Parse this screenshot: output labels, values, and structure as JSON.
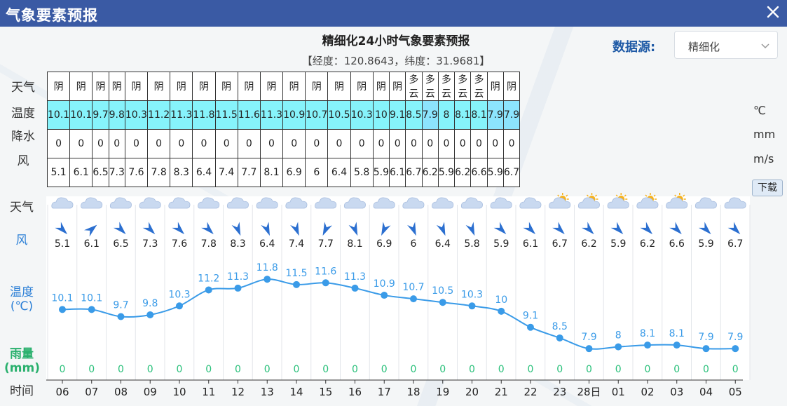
{
  "window": {
    "title": "气象要素预报",
    "close_icon": "close-icon"
  },
  "header": {
    "title": "精细化24小时气象要素预报",
    "coords": "【经度：120.8643，纬度：31.9681】",
    "source_label": "数据源:",
    "source_value": "精细化"
  },
  "table": {
    "row_labels": [
      "天气",
      "温度",
      "降水",
      "风"
    ],
    "units": [
      "℃",
      "mm",
      "m/s"
    ],
    "weather": [
      "阴",
      "阴",
      "阴",
      "阴",
      "阴",
      "阴",
      "阴",
      "阴",
      "阴",
      "阴",
      "阴",
      "阴",
      "阴",
      "阴",
      "阴",
      "阴",
      "阴",
      "多云",
      "多云",
      "多云",
      "多云",
      "多云",
      "阴",
      "阴"
    ],
    "temperature": [
      "10.1",
      "10.1",
      "9.7",
      "9.8",
      "10.3",
      "11.2",
      "11.3",
      "11.8",
      "11.5",
      "11.6",
      "11.3",
      "10.9",
      "10.7",
      "10.5",
      "10.3",
      "10",
      "9.1",
      "8.5",
      "7.9",
      "8",
      "8.1",
      "8.1",
      "7.9",
      "7.9"
    ],
    "precipitation": [
      "0",
      "0",
      "0",
      "0",
      "0",
      "0",
      "0",
      "0",
      "0",
      "0",
      "0",
      "0",
      "0",
      "0",
      "0",
      "0",
      "0",
      "0",
      "0",
      "0",
      "0",
      "0",
      "0",
      "0"
    ],
    "wind": [
      "5.1",
      "6.1",
      "6.5",
      "7.3",
      "7.6",
      "7.8",
      "8.3",
      "6.4",
      "7.4",
      "7.7",
      "8.1",
      "6.9",
      "6",
      "6.4",
      "5.8",
      "5.9",
      "6.1",
      "6.7",
      "6.2",
      "5.9",
      "6.2",
      "6.6",
      "5.9",
      "6.7"
    ]
  },
  "chart": {
    "download_label": "下载",
    "labels": {
      "weather": "天气",
      "wind": "风",
      "temp_line1": "温度",
      "temp_line2": "(℃)",
      "rain_line1": "雨量",
      "rain_line2": "(mm)",
      "time": "时间"
    },
    "colors": {
      "temperature": "#3a9be8",
      "rain": "#29c07a",
      "table_highlight": "#86f3fb"
    }
  },
  "chart_data": {
    "type": "line",
    "x": [
      "06",
      "07",
      "08",
      "09",
      "10",
      "11",
      "12",
      "13",
      "14",
      "15",
      "16",
      "17",
      "18",
      "19",
      "20",
      "21",
      "22",
      "23",
      "28日",
      "01",
      "02",
      "03",
      "04",
      "05"
    ],
    "series": [
      {
        "name": "温度",
        "values": [
          10.1,
          10.1,
          9.7,
          9.8,
          10.3,
          11.2,
          11.3,
          11.8,
          11.5,
          11.6,
          11.3,
          10.9,
          10.7,
          10.5,
          10.3,
          10,
          9.1,
          8.5,
          7.9,
          8,
          8.1,
          8.1,
          7.9,
          7.9
        ]
      },
      {
        "name": "雨量",
        "values": [
          0,
          0,
          0,
          0,
          0,
          0,
          0,
          0,
          0,
          0,
          0,
          0,
          0,
          0,
          0,
          0,
          0,
          0,
          0,
          0,
          0,
          0,
          0,
          0
        ]
      }
    ],
    "wind_speed": [
      5.1,
      6.1,
      6.5,
      7.3,
      7.6,
      7.8,
      8.3,
      6.4,
      7.4,
      7.7,
      8.1,
      6.9,
      6,
      6.4,
      5.8,
      5.9,
      6.1,
      6.7,
      6.2,
      5.9,
      6.2,
      6.6,
      5.9,
      6.7
    ],
    "wind_direction_deg": [
      315,
      230,
      315,
      315,
      315,
      315,
      338,
      338,
      338,
      25,
      338,
      25,
      338,
      338,
      338,
      315,
      315,
      315,
      315,
      315,
      315,
      315,
      315,
      315
    ],
    "weather_icons": [
      "cloudy-icon",
      "cloudy-icon",
      "cloudy-icon",
      "cloudy-icon",
      "cloudy-icon",
      "cloudy-icon",
      "cloudy-icon",
      "cloudy-icon",
      "cloudy-icon",
      "cloudy-icon",
      "cloudy-icon",
      "cloudy-icon",
      "cloudy-icon",
      "cloudy-icon",
      "cloudy-icon",
      "cloudy-icon",
      "cloudy-icon",
      "partly-cloudy-icon",
      "partly-cloudy-icon",
      "partly-cloudy-icon",
      "partly-cloudy-icon",
      "partly-cloudy-icon",
      "cloudy-icon",
      "cloudy-icon"
    ],
    "grid": true
  }
}
